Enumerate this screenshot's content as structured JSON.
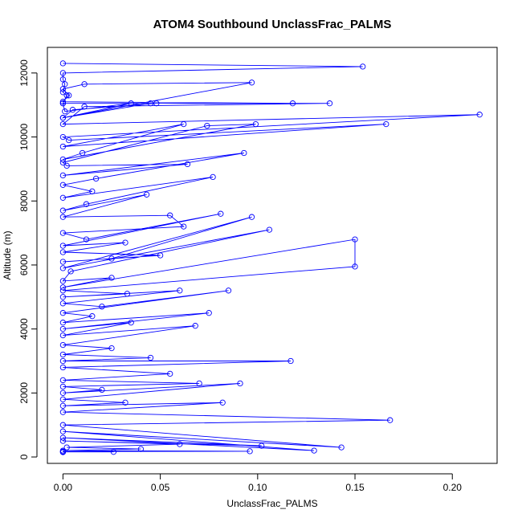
{
  "chart_data": {
    "type": "line",
    "title": "ATOM4 Southbound UnclassFrac_PALMS",
    "xlabel": "UnclassFrac_PALMS",
    "ylabel": "Altitude (m)",
    "xlim": [
      -0.008,
      0.223
    ],
    "ylim": [
      -200,
      12800
    ],
    "x_ticks": [
      0.0,
      0.05,
      0.1,
      0.15,
      0.2
    ],
    "x_tick_labels": [
      "0.00",
      "0.05",
      "0.10",
      "0.15",
      "0.20"
    ],
    "y_ticks": [
      0,
      2000,
      4000,
      6000,
      8000,
      10000,
      12000
    ],
    "y_tick_labels": [
      "0",
      "2000",
      "4000",
      "6000",
      "8000",
      "10000",
      "12000"
    ],
    "grid": false,
    "legend": "none",
    "series_color": "#0000ff",
    "marker": "open-circle",
    "series": [
      {
        "x": [
          0.0,
          0.154,
          0.0,
          0.0,
          0.001,
          0.0,
          0.002,
          0.0,
          0.048,
          0.005,
          0.0,
          0.097,
          0.011,
          0.0,
          0.003,
          0.0,
          0.118,
          0.0,
          0.001,
          0.035,
          0.0,
          0.045,
          0.137,
          0.011,
          0.0,
          0.214,
          0.0,
          0.003,
          0.166,
          0.0,
          0.062,
          0.01,
          0.0,
          0.099,
          0.074,
          0.0,
          0.002,
          0.064,
          0.0,
          0.093,
          0.017,
          0.0,
          0.015,
          0.0,
          0.077,
          0.012,
          0.0,
          0.043,
          0.0,
          0.055,
          0.062,
          0.0,
          0.012,
          0.081,
          0.0,
          0.032,
          0.0,
          0.05,
          0.0,
          0.025,
          0.097,
          0.0,
          0.106,
          0.004,
          0.0,
          0.025,
          0.0,
          0.15,
          0.15,
          0.0,
          0.033,
          0.0,
          0.06,
          0.0,
          0.02,
          0.085,
          0.0,
          0.015,
          0.0,
          0.075,
          0.0,
          0.035,
          0.0,
          0.068,
          0.0,
          0.025,
          0.0,
          0.045,
          0.0,
          0.117,
          0.0,
          0.055,
          0.0,
          0.07,
          0.0,
          0.02,
          0.0,
          0.091,
          0.0,
          0.032,
          0.0,
          0.082,
          0.0,
          0.168,
          0.0,
          0.143,
          0.0,
          0.129,
          0.0,
          0.102,
          0.0,
          0.06,
          0.002,
          0.04,
          0.0,
          0.096,
          0.0,
          0.026,
          0.0,
          0.0
        ],
        "y": [
          12300,
          12200,
          12000,
          11800,
          11650,
          11400,
          11300,
          11050,
          11050,
          10850,
          10600,
          11700,
          11650,
          11500,
          11300,
          11100,
          11050,
          11050,
          10800,
          11050,
          10600,
          11050,
          11050,
          10950,
          10400,
          10700,
          10000,
          9900,
          10400,
          9700,
          10400,
          9500,
          9300,
          10400,
          10350,
          9200,
          9100,
          9150,
          8800,
          9500,
          8700,
          8500,
          8300,
          8100,
          8750,
          7900,
          7700,
          8200,
          7500,
          7550,
          7200,
          7000,
          6800,
          7600,
          6600,
          6700,
          6400,
          6300,
          6100,
          6200,
          7500,
          5900,
          7100,
          5800,
          5500,
          5600,
          5300,
          6800,
          5950,
          5200,
          5100,
          5000,
          5200,
          4800,
          4700,
          5200,
          4500,
          4400,
          4200,
          4500,
          4000,
          4200,
          3800,
          4100,
          3500,
          3400,
          3200,
          3100,
          3000,
          3000,
          2800,
          2600,
          2400,
          2300,
          2200,
          2100,
          2000,
          2300,
          1800,
          1700,
          1600,
          1700,
          1400,
          1150,
          1000,
          300,
          800,
          200,
          600,
          350,
          500,
          400,
          300,
          250,
          200,
          180,
          170,
          160,
          160,
          150
        ]
      }
    ]
  }
}
